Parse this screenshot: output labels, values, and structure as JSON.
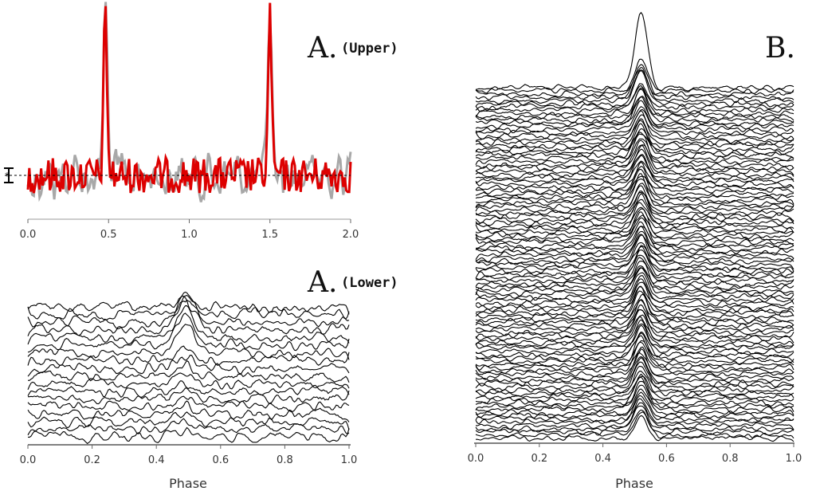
{
  "panels": {
    "upper": {
      "letter": "A.",
      "sub": "(Upper)"
    },
    "lower": {
      "letter": "A.",
      "sub": "(Lower)"
    },
    "right": {
      "letter": "B.",
      "sub": ""
    }
  },
  "colors": {
    "gray": "#a8a8a8",
    "red": "#dd0000",
    "ink": "#000000",
    "axis": "#999999"
  },
  "chart_data": [
    {
      "id": "A-upper",
      "type": "line",
      "title": "",
      "xlabel": "",
      "ylabel": "",
      "xlim": [
        0.0,
        2.0
      ],
      "xticks": [
        "0.0",
        "0.5",
        "1.0",
        "1.5",
        "2.0"
      ],
      "grid": false,
      "legend": "none",
      "pulse_phases": [
        0.48,
        1.5
      ],
      "series": [
        {
          "color": "gray",
          "values_desc": "profile",
          "peak_height": 1.0
        },
        {
          "color": "red",
          "values_desc": "profile",
          "peak_height": 0.95
        }
      ],
      "baseline": "dashed",
      "errorbar": true
    },
    {
      "id": "A-lower",
      "type": "line",
      "title": "",
      "xlabel": "Phase",
      "ylabel": "",
      "xlim": [
        0.0,
        1.0
      ],
      "xticks": [
        "0.0",
        "0.2",
        "0.4",
        "0.6",
        "0.8",
        "1.0"
      ],
      "grid": false,
      "legend": "none",
      "stacked_profiles": 18,
      "pulse_phase": 0.49
    },
    {
      "id": "B",
      "type": "line",
      "title": "",
      "xlabel": "Phase",
      "ylabel": "",
      "xlim": [
        0.0,
        1.0
      ],
      "xticks": [
        "0.0",
        "0.2",
        "0.4",
        "0.6",
        "0.8",
        "1.0"
      ],
      "grid": false,
      "legend": "none",
      "stacked_profiles": 110,
      "pulse_phase": 0.52
    }
  ]
}
